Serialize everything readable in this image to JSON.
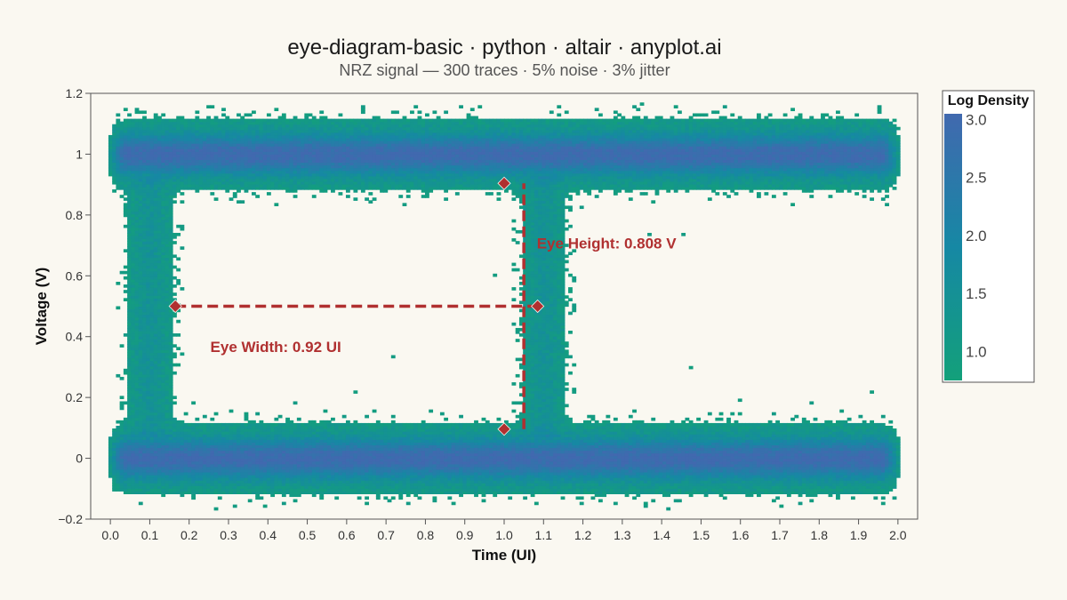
{
  "chart_data": {
    "type": "heatmap",
    "title": "eye-diagram-basic · python · altair · anyplot.ai",
    "subtitle": "NRZ signal — 300 traces · 5% noise · 3% jitter",
    "xlabel": "Time (UI)",
    "ylabel": "Voltage (V)",
    "xlim": [
      -0.05,
      2.05
    ],
    "ylim": [
      -0.2,
      1.2
    ],
    "x_ticks": [
      "0.0",
      "0.1",
      "0.2",
      "0.3",
      "0.4",
      "0.5",
      "0.6",
      "0.7",
      "0.8",
      "0.9",
      "1.0",
      "1.1",
      "1.2",
      "1.3",
      "1.4",
      "1.5",
      "1.6",
      "1.7",
      "1.8",
      "1.9",
      "2.0"
    ],
    "x_tick_values": [
      0.0,
      0.1,
      0.2,
      0.3,
      0.4,
      0.5,
      0.6,
      0.7,
      0.8,
      0.9,
      1.0,
      1.1,
      1.2,
      1.3,
      1.4,
      1.5,
      1.6,
      1.7,
      1.8,
      1.9,
      2.0
    ],
    "y_ticks": [
      "−0.2",
      "0",
      "0.2",
      "0.4",
      "0.6",
      "0.8",
      "1",
      "1.2"
    ],
    "y_tick_values": [
      -0.2,
      0.0,
      0.2,
      0.4,
      0.6,
      0.8,
      1.0,
      1.2
    ],
    "grid": false,
    "signal": {
      "high": 1.0,
      "low": 0.0,
      "noise": 0.05,
      "jitter": 0.03,
      "traces": 300,
      "crossings": [
        0.1,
        1.1
      ]
    },
    "colorbar": {
      "title": "Log Density",
      "ticks": [
        "3.0",
        "2.5",
        "2.0",
        "1.5",
        "1.0"
      ],
      "tick_values": [
        3.0,
        2.5,
        2.0,
        1.5,
        1.0
      ],
      "range": [
        0.75,
        3.05
      ],
      "placement": "right",
      "colors": [
        "#13A07A",
        "#1688A4",
        "#4169AF"
      ]
    },
    "annotations": {
      "color": "#B03030",
      "eye_width_label": "Eye Width: 0.92 UI",
      "eye_width_label_pos": [
        0.42,
        0.35
      ],
      "eye_height_label": "Eye Height: 0.808 V",
      "eye_height_label_pos": [
        1.26,
        0.69
      ],
      "width_line": {
        "x1": 0.165,
        "x2": 1.085,
        "y": 0.5
      },
      "height_line": {
        "x": 1.05,
        "y1": 0.096,
        "y2": 0.904
      },
      "markers": [
        {
          "x": 0.165,
          "y": 0.5
        },
        {
          "x": 1.085,
          "y": 0.5
        },
        {
          "x": 1.0,
          "y": 0.904
        },
        {
          "x": 1.0,
          "y": 0.096
        }
      ]
    }
  }
}
